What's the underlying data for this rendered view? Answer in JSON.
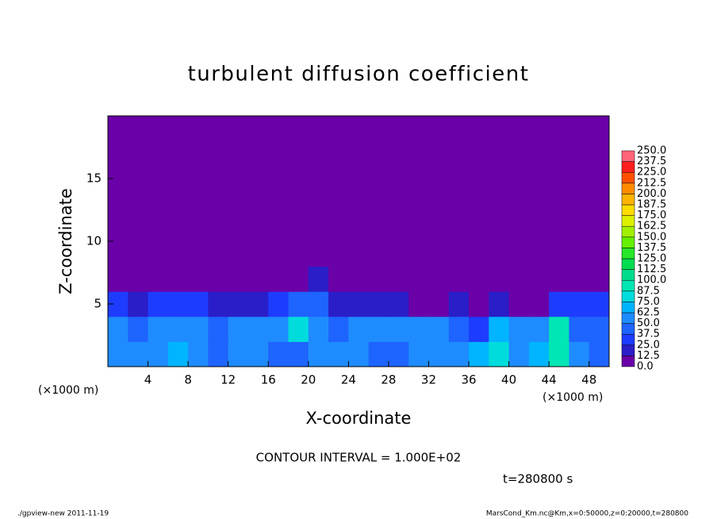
{
  "chart_data": {
    "type": "heatmap",
    "title": "turbulent diffusion coefficient",
    "xlabel": "X-coordinate",
    "ylabel": "Z-coordinate",
    "xunit": "(×1000 m)",
    "yunit": "(×1000 m)",
    "xlim": [
      0,
      50
    ],
    "ylim": [
      0,
      20
    ],
    "xticks": [
      4,
      8,
      12,
      16,
      20,
      24,
      28,
      32,
      36,
      40,
      44,
      48
    ],
    "yticks": [
      5,
      10,
      15
    ],
    "values": [
      [
        55,
        60,
        50,
        65,
        55,
        45,
        60,
        50,
        45,
        40,
        55,
        60,
        50,
        40,
        45,
        50,
        55,
        60,
        70,
        85,
        60,
        70,
        90,
        50,
        45
      ],
      [
        50,
        45,
        55,
        60,
        50,
        40,
        55,
        50,
        55,
        75,
        60,
        45,
        50,
        50,
        55,
        55,
        50,
        40,
        30,
        70,
        55,
        60,
        95,
        45,
        40
      ],
      [
        35,
        20,
        30,
        35,
        25,
        20,
        15,
        15,
        30,
        45,
        40,
        20,
        20,
        15,
        15,
        5,
        10,
        20,
        10,
        15,
        5,
        10,
        30,
        25,
        30
      ],
      [
        5,
        0,
        0,
        0,
        0,
        0,
        5,
        0,
        0,
        5,
        20,
        0,
        0,
        0,
        0,
        0,
        0,
        5,
        5,
        0,
        0,
        0,
        5,
        0,
        0
      ],
      [
        0,
        0,
        5,
        0,
        5,
        0,
        0,
        5,
        0,
        0,
        5,
        0,
        0,
        0,
        0,
        0,
        0,
        5,
        5,
        0,
        5,
        0,
        5,
        5,
        10
      ],
      [
        0,
        0,
        0,
        0,
        0,
        5,
        0,
        0,
        0,
        0,
        0,
        0,
        0,
        0,
        0,
        0,
        0,
        0,
        0,
        0,
        0,
        0,
        0,
        0,
        0
      ],
      [
        0,
        0,
        0,
        0,
        0,
        0,
        0,
        0,
        0,
        0,
        0,
        0,
        0,
        0,
        0,
        0,
        0,
        0,
        0,
        0,
        0,
        0,
        0,
        0,
        0
      ],
      [
        0,
        0,
        0,
        0,
        0,
        0,
        0,
        0,
        0,
        0,
        0,
        0,
        0,
        0,
        0,
        0,
        0,
        0,
        0,
        0,
        0,
        0,
        0,
        0,
        0
      ],
      [
        0,
        0,
        0,
        0,
        0,
        0,
        0,
        0,
        0,
        0,
        0,
        0,
        0,
        0,
        0,
        0,
        5,
        0,
        0,
        0,
        0,
        0,
        0,
        0,
        0
      ],
      [
        0,
        0,
        0,
        0,
        0,
        0,
        0,
        0,
        0,
        0,
        0,
        0,
        0,
        0,
        0,
        0,
        0,
        0,
        0,
        0,
        0,
        0,
        0,
        0,
        0
      ]
    ],
    "colorbar": {
      "levels": [
        {
          "value": 0,
          "label": "0.0"
        },
        {
          "value": 12.5,
          "label": "12.5"
        },
        {
          "value": 25,
          "label": "25.0"
        },
        {
          "value": 37.5,
          "label": "37.5"
        },
        {
          "value": 50,
          "label": "50.0"
        },
        {
          "value": 62.5,
          "label": "62.5"
        },
        {
          "value": 75,
          "label": "75.0"
        },
        {
          "value": 87.5,
          "label": "87.5"
        },
        {
          "value": 100,
          "label": "100.0"
        },
        {
          "value": 112.5,
          "label": "112.5"
        },
        {
          "value": 125,
          "label": "125.0"
        },
        {
          "value": 137.5,
          "label": "137.5"
        },
        {
          "value": 150,
          "label": "150.0"
        },
        {
          "value": 162.5,
          "label": "162.5"
        },
        {
          "value": 175,
          "label": "175.0"
        },
        {
          "value": 187.5,
          "label": "187.5"
        },
        {
          "value": 200,
          "label": "200.0"
        },
        {
          "value": 212.5,
          "label": "212.5"
        },
        {
          "value": 225,
          "label": "225.0"
        },
        {
          "value": 237.5,
          "label": "237.5"
        },
        {
          "value": 250,
          "label": "250.0"
        }
      ],
      "colors": [
        "#6a00a8",
        "#2a1ec8",
        "#1e3cff",
        "#1e64ff",
        "#1e8cff",
        "#00b4ff",
        "#00dcdc",
        "#00e6b4",
        "#00dc8c",
        "#00dc50",
        "#28e628",
        "#64f000",
        "#a0f000",
        "#dcf000",
        "#ffdc00",
        "#ffb400",
        "#ff8c00",
        "#ff5000",
        "#ff1e1e",
        "#ff6478"
      ]
    },
    "contour_note": "CONTOUR INTERVAL = 1.000E+02",
    "time_note": "t=280800 s",
    "footer_left": "./gpview-new  2011-11-19",
    "footer_right": "MarsCond_Km.nc@Km,x=0:50000,z=0:20000,t=280800"
  }
}
